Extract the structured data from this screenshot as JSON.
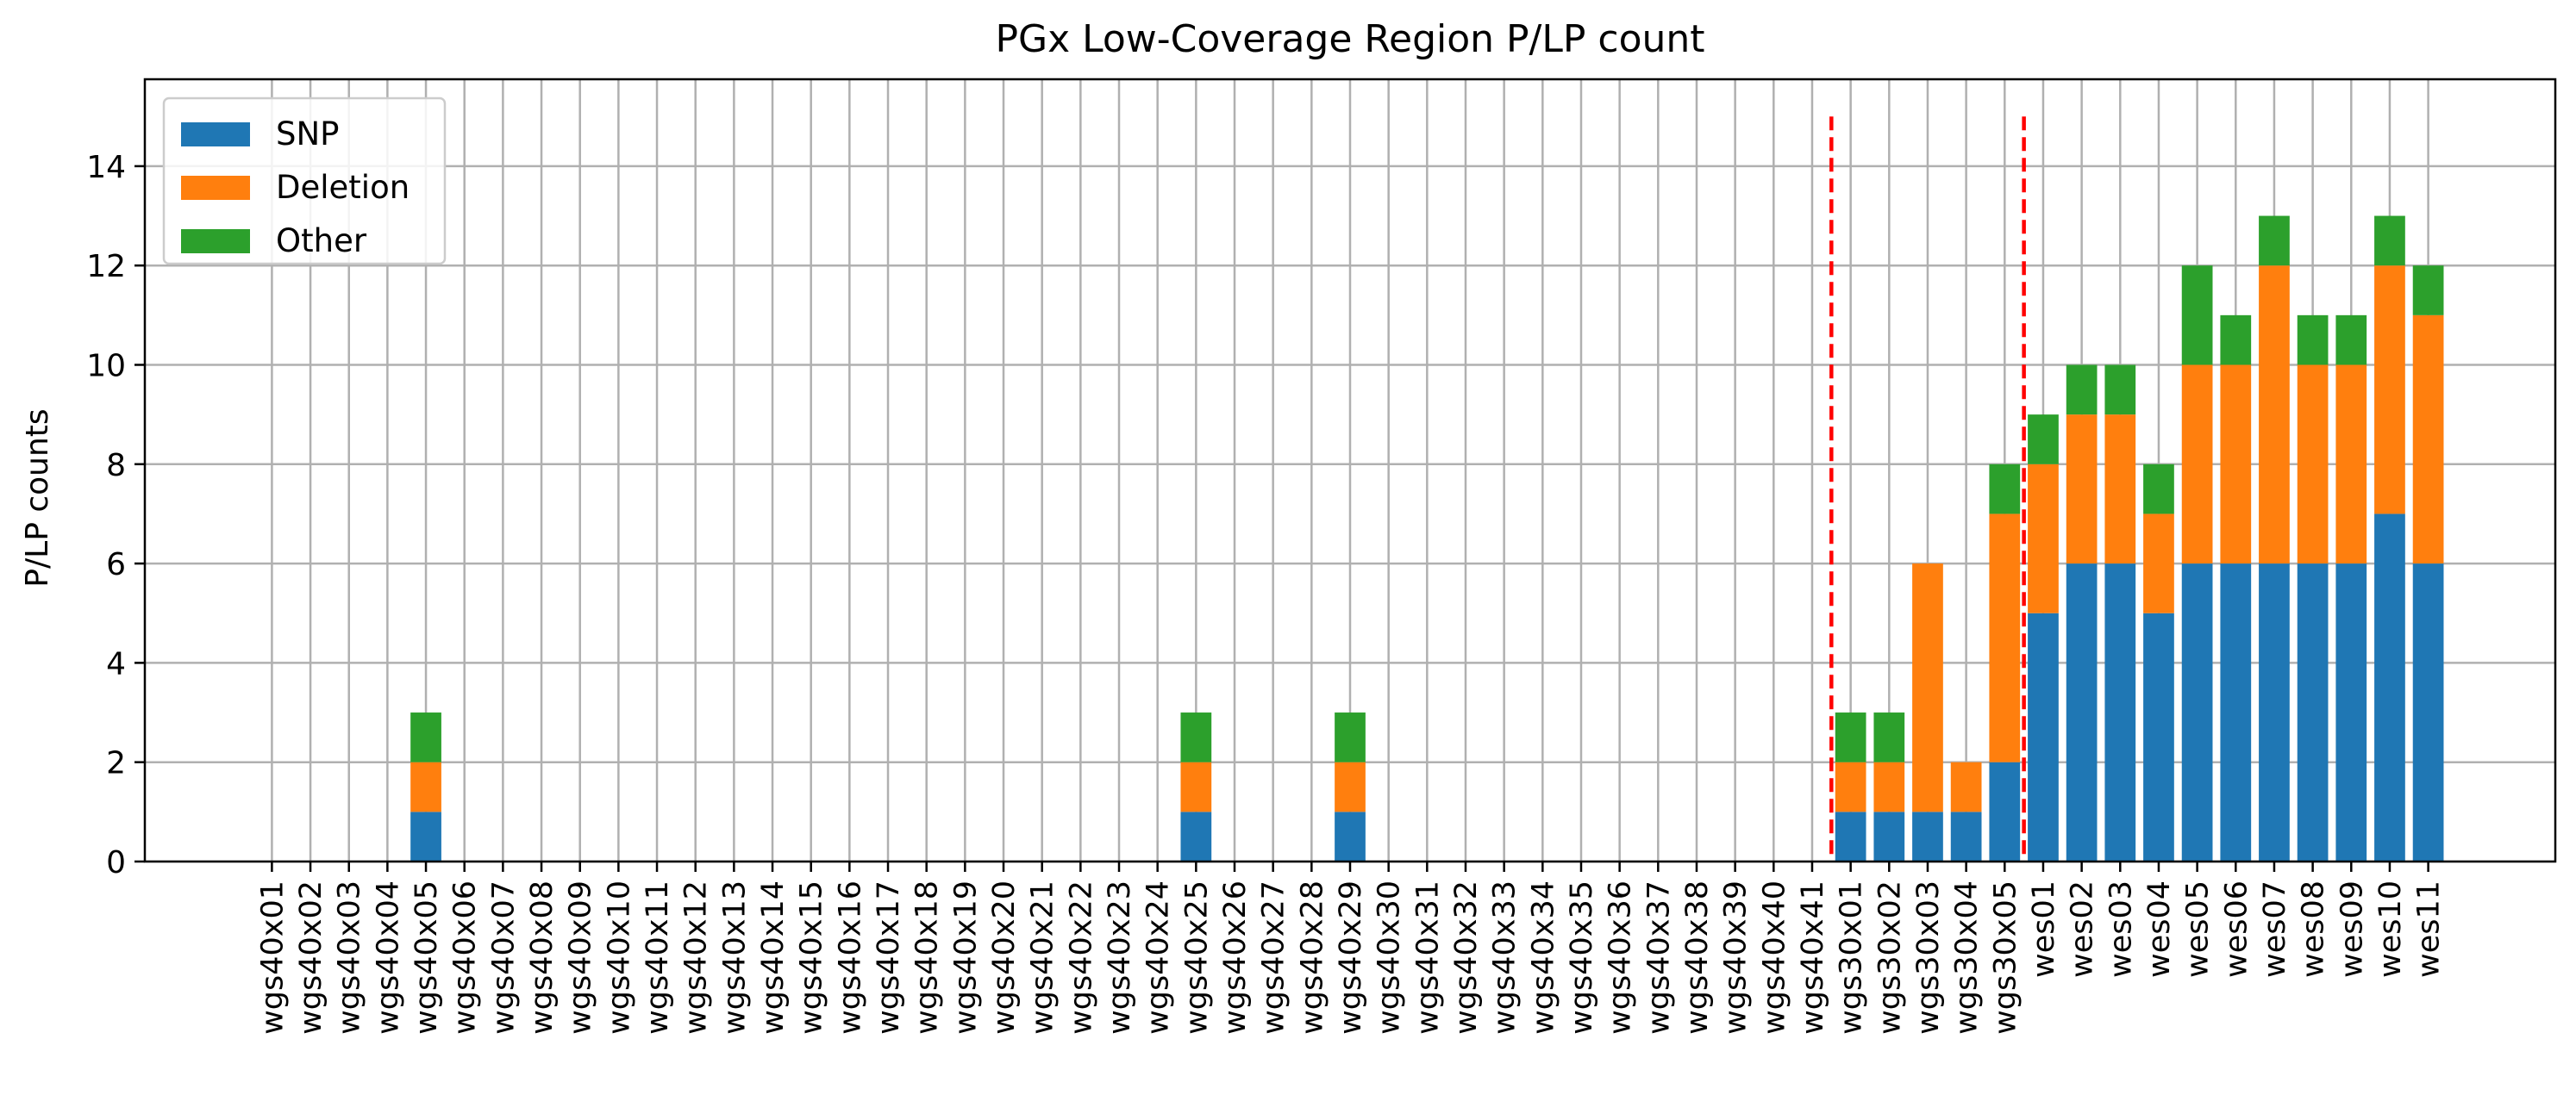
{
  "chart_data": {
    "type": "bar",
    "stacked": true,
    "title": "PGx Low-Coverage Region P/LP count",
    "xlabel": "",
    "ylabel": "P/LP counts",
    "ylim": [
      0,
      15.75
    ],
    "yticks": [
      0,
      2,
      4,
      6,
      8,
      10,
      12,
      14
    ],
    "grid": true,
    "legend_position": "top-left",
    "categories": [
      "wgs40x01",
      "wgs40x02",
      "wgs40x03",
      "wgs40x04",
      "wgs40x05",
      "wgs40x06",
      "wgs40x07",
      "wgs40x08",
      "wgs40x09",
      "wgs40x10",
      "wgs40x11",
      "wgs40x12",
      "wgs40x13",
      "wgs40x14",
      "wgs40x15",
      "wgs40x16",
      "wgs40x17",
      "wgs40x18",
      "wgs40x19",
      "wgs40x20",
      "wgs40x21",
      "wgs40x22",
      "wgs40x23",
      "wgs40x24",
      "wgs40x25",
      "wgs40x26",
      "wgs40x27",
      "wgs40x28",
      "wgs40x29",
      "wgs40x30",
      "wgs40x31",
      "wgs40x32",
      "wgs40x33",
      "wgs40x34",
      "wgs40x35",
      "wgs40x36",
      "wgs40x37",
      "wgs40x38",
      "wgs40x39",
      "wgs40x40",
      "wgs40x41",
      "wgs30x01",
      "wgs30x02",
      "wgs30x03",
      "wgs30x04",
      "wgs30x05",
      "wes01",
      "wes02",
      "wes03",
      "wes04",
      "wes05",
      "wes06",
      "wes07",
      "wes08",
      "wes09",
      "wes10",
      "wes11"
    ],
    "series": [
      {
        "name": "SNP",
        "color": "#1f77b4",
        "values": [
          0,
          0,
          0,
          0,
          1,
          0,
          0,
          0,
          0,
          0,
          0,
          0,
          0,
          0,
          0,
          0,
          0,
          0,
          0,
          0,
          0,
          0,
          0,
          0,
          1,
          0,
          0,
          0,
          1,
          0,
          0,
          0,
          0,
          0,
          0,
          0,
          0,
          0,
          0,
          0,
          0,
          1,
          1,
          1,
          1,
          2,
          5,
          6,
          6,
          5,
          6,
          6,
          6,
          6,
          6,
          7,
          6
        ]
      },
      {
        "name": "Deletion",
        "color": "#ff7f0e",
        "values": [
          0,
          0,
          0,
          0,
          1,
          0,
          0,
          0,
          0,
          0,
          0,
          0,
          0,
          0,
          0,
          0,
          0,
          0,
          0,
          0,
          0,
          0,
          0,
          0,
          1,
          0,
          0,
          0,
          1,
          0,
          0,
          0,
          0,
          0,
          0,
          0,
          0,
          0,
          0,
          0,
          0,
          1,
          1,
          5,
          1,
          5,
          3,
          3,
          3,
          2,
          4,
          4,
          6,
          4,
          4,
          5,
          5
        ]
      },
      {
        "name": "Other",
        "color": "#2ca02c",
        "values": [
          0,
          0,
          0,
          0,
          1,
          0,
          0,
          0,
          0,
          0,
          0,
          0,
          0,
          0,
          0,
          0,
          0,
          0,
          0,
          0,
          0,
          0,
          0,
          0,
          1,
          0,
          0,
          0,
          1,
          0,
          0,
          0,
          0,
          0,
          0,
          0,
          0,
          0,
          0,
          0,
          0,
          1,
          1,
          0,
          0,
          1,
          1,
          1,
          1,
          1,
          2,
          1,
          1,
          1,
          1,
          1,
          1
        ]
      }
    ],
    "separators": {
      "color": "#ff0000",
      "style": "dashed",
      "between": [
        [
          "wgs40x41",
          "wgs30x01"
        ],
        [
          "wgs30x05",
          "wes01"
        ]
      ],
      "y_top": 15
    }
  }
}
